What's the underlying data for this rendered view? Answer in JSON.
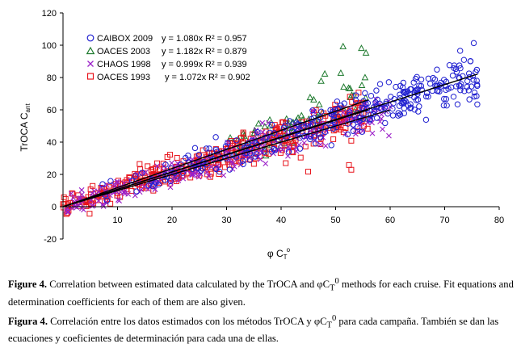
{
  "chart_data": {
    "type": "scatter",
    "xlabel_greek": "φ",
    "xlabel_main": "C",
    "xlabel_sub": "T",
    "xlabel_sup": "o",
    "ylabel_main": "TrOCA C",
    "ylabel_sub": "ant",
    "xlim": [
      0,
      80
    ],
    "ylim": [
      -20,
      120
    ],
    "xticks": [
      10,
      20,
      30,
      40,
      50,
      60,
      70,
      80
    ],
    "yticks": [
      -20,
      0,
      20,
      40,
      60,
      80,
      100,
      120
    ],
    "legend_position": "top-left",
    "series": [
      {
        "name": "CAIBOX 2009",
        "marker": "circle",
        "color": "#1f1fd0",
        "equation": "y = 1.080x",
        "r2": "R² = 0.957",
        "slope": 1.08,
        "x_range": [
          0,
          76
        ]
      },
      {
        "name": "OACES 2003",
        "marker": "triangle",
        "color": "#1e7a2e",
        "equation": "y = 1.182x",
        "r2": "R² = 0.879",
        "slope": 1.182,
        "x_range": [
          0,
          56
        ]
      },
      {
        "name": "CHAOS 1998",
        "marker": "x",
        "color": "#9b20c8",
        "equation": "y = 0.999x",
        "r2": "R² = 0.939",
        "slope": 0.999,
        "x_range": [
          0,
          60
        ]
      },
      {
        "name": "OACES 1993",
        "marker": "square",
        "color": "#e8141c",
        "equation": "y = 1.072x",
        "r2": "R² = 0.902",
        "slope": 1.072,
        "x_range": [
          0,
          56
        ]
      }
    ]
  },
  "caption": {
    "en_label": "Figure 4.",
    "en_pre": " Correlation between estimated data calculated by the TrOCA and φC",
    "en_sub": "T",
    "en_sup": "0",
    "en_post": " methods for each cruise. Fit equations and determination coefficients for each of them are also given.",
    "es_label": "Figura 4.",
    "es_pre": " Correlación entre los datos estimados con los métodos TrOCA y φC",
    "es_sub": "T",
    "es_sup": "0",
    "es_post": " para cada campaña. También se dan las ecuaciones y coeficientes de determinación para cada una de ellas."
  }
}
